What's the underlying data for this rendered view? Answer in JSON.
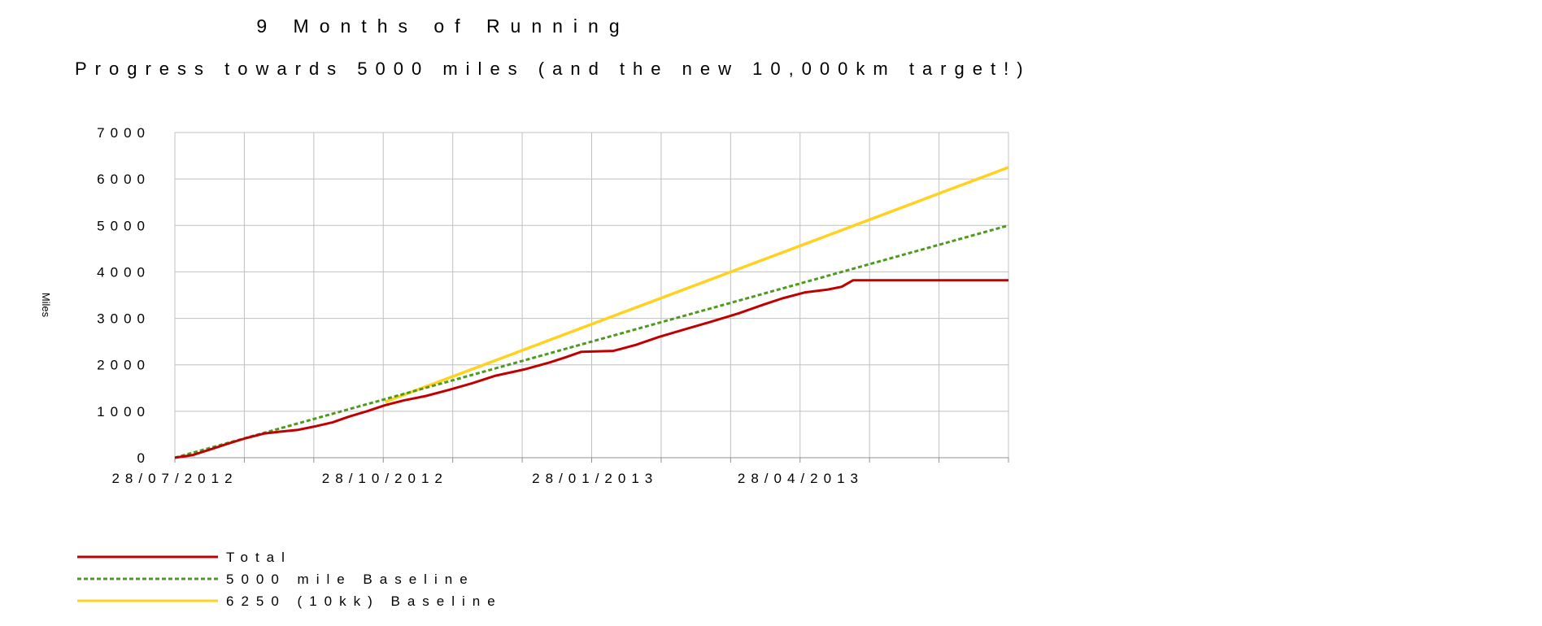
{
  "chart_data": {
    "type": "line",
    "title": "9 Months of Running",
    "subtitle": "Progress towards 5000 miles (and the new 10,000km target!)",
    "xlabel": "",
    "ylabel": "Miles",
    "ylim": [
      0,
      7000
    ],
    "yticks": [
      "0",
      "1000",
      "2000",
      "3000",
      "4000",
      "5000",
      "6000",
      "7000"
    ],
    "xticks": [
      "28/07/2012",
      "28/10/2012",
      "28/01/2013",
      "28/04/2013"
    ],
    "xlim": [
      "2012-07-28",
      "2013-07-28"
    ],
    "grid": true,
    "legend_position": "bottom-left",
    "series": [
      {
        "name": "Total",
        "color": "#c00000",
        "dash": "solid",
        "points": [
          [
            "2012-07-28",
            0
          ],
          [
            "2012-08-05",
            60
          ],
          [
            "2012-08-12",
            170
          ],
          [
            "2012-08-20",
            300
          ],
          [
            "2012-08-28",
            420
          ],
          [
            "2012-09-05",
            520
          ],
          [
            "2012-09-12",
            560
          ],
          [
            "2012-09-20",
            600
          ],
          [
            "2012-09-28",
            680
          ],
          [
            "2012-10-05",
            760
          ],
          [
            "2012-10-12",
            880
          ],
          [
            "2012-10-20",
            1000
          ],
          [
            "2012-10-28",
            1130
          ],
          [
            "2012-11-05",
            1230
          ],
          [
            "2012-11-15",
            1330
          ],
          [
            "2012-11-25",
            1460
          ],
          [
            "2012-12-05",
            1600
          ],
          [
            "2012-12-15",
            1760
          ],
          [
            "2012-12-28",
            1900
          ],
          [
            "2013-01-08",
            2050
          ],
          [
            "2013-01-15",
            2160
          ],
          [
            "2013-01-22",
            2280
          ],
          [
            "2013-02-05",
            2300
          ],
          [
            "2013-02-15",
            2430
          ],
          [
            "2013-02-25",
            2600
          ],
          [
            "2013-03-08",
            2760
          ],
          [
            "2013-03-20",
            2930
          ],
          [
            "2013-04-01",
            3110
          ],
          [
            "2013-04-12",
            3300
          ],
          [
            "2013-04-20",
            3430
          ],
          [
            "2013-04-30",
            3560
          ],
          [
            "2013-05-10",
            3620
          ],
          [
            "2013-05-16",
            3680
          ],
          [
            "2013-05-21",
            3820
          ],
          [
            "2013-07-28",
            3820
          ]
        ]
      },
      {
        "name": "5000 mile Baseline",
        "color": "#4d9a1f",
        "dash": "dashed",
        "points": [
          [
            "2012-07-28",
            0
          ],
          [
            "2013-07-28",
            5000
          ]
        ]
      },
      {
        "name": "6250 (10kk) Baseline",
        "color": "#ffd21f",
        "dash": "solid",
        "points": [
          [
            "2012-10-28",
            1200
          ],
          [
            "2013-07-28",
            6250
          ]
        ]
      }
    ]
  }
}
